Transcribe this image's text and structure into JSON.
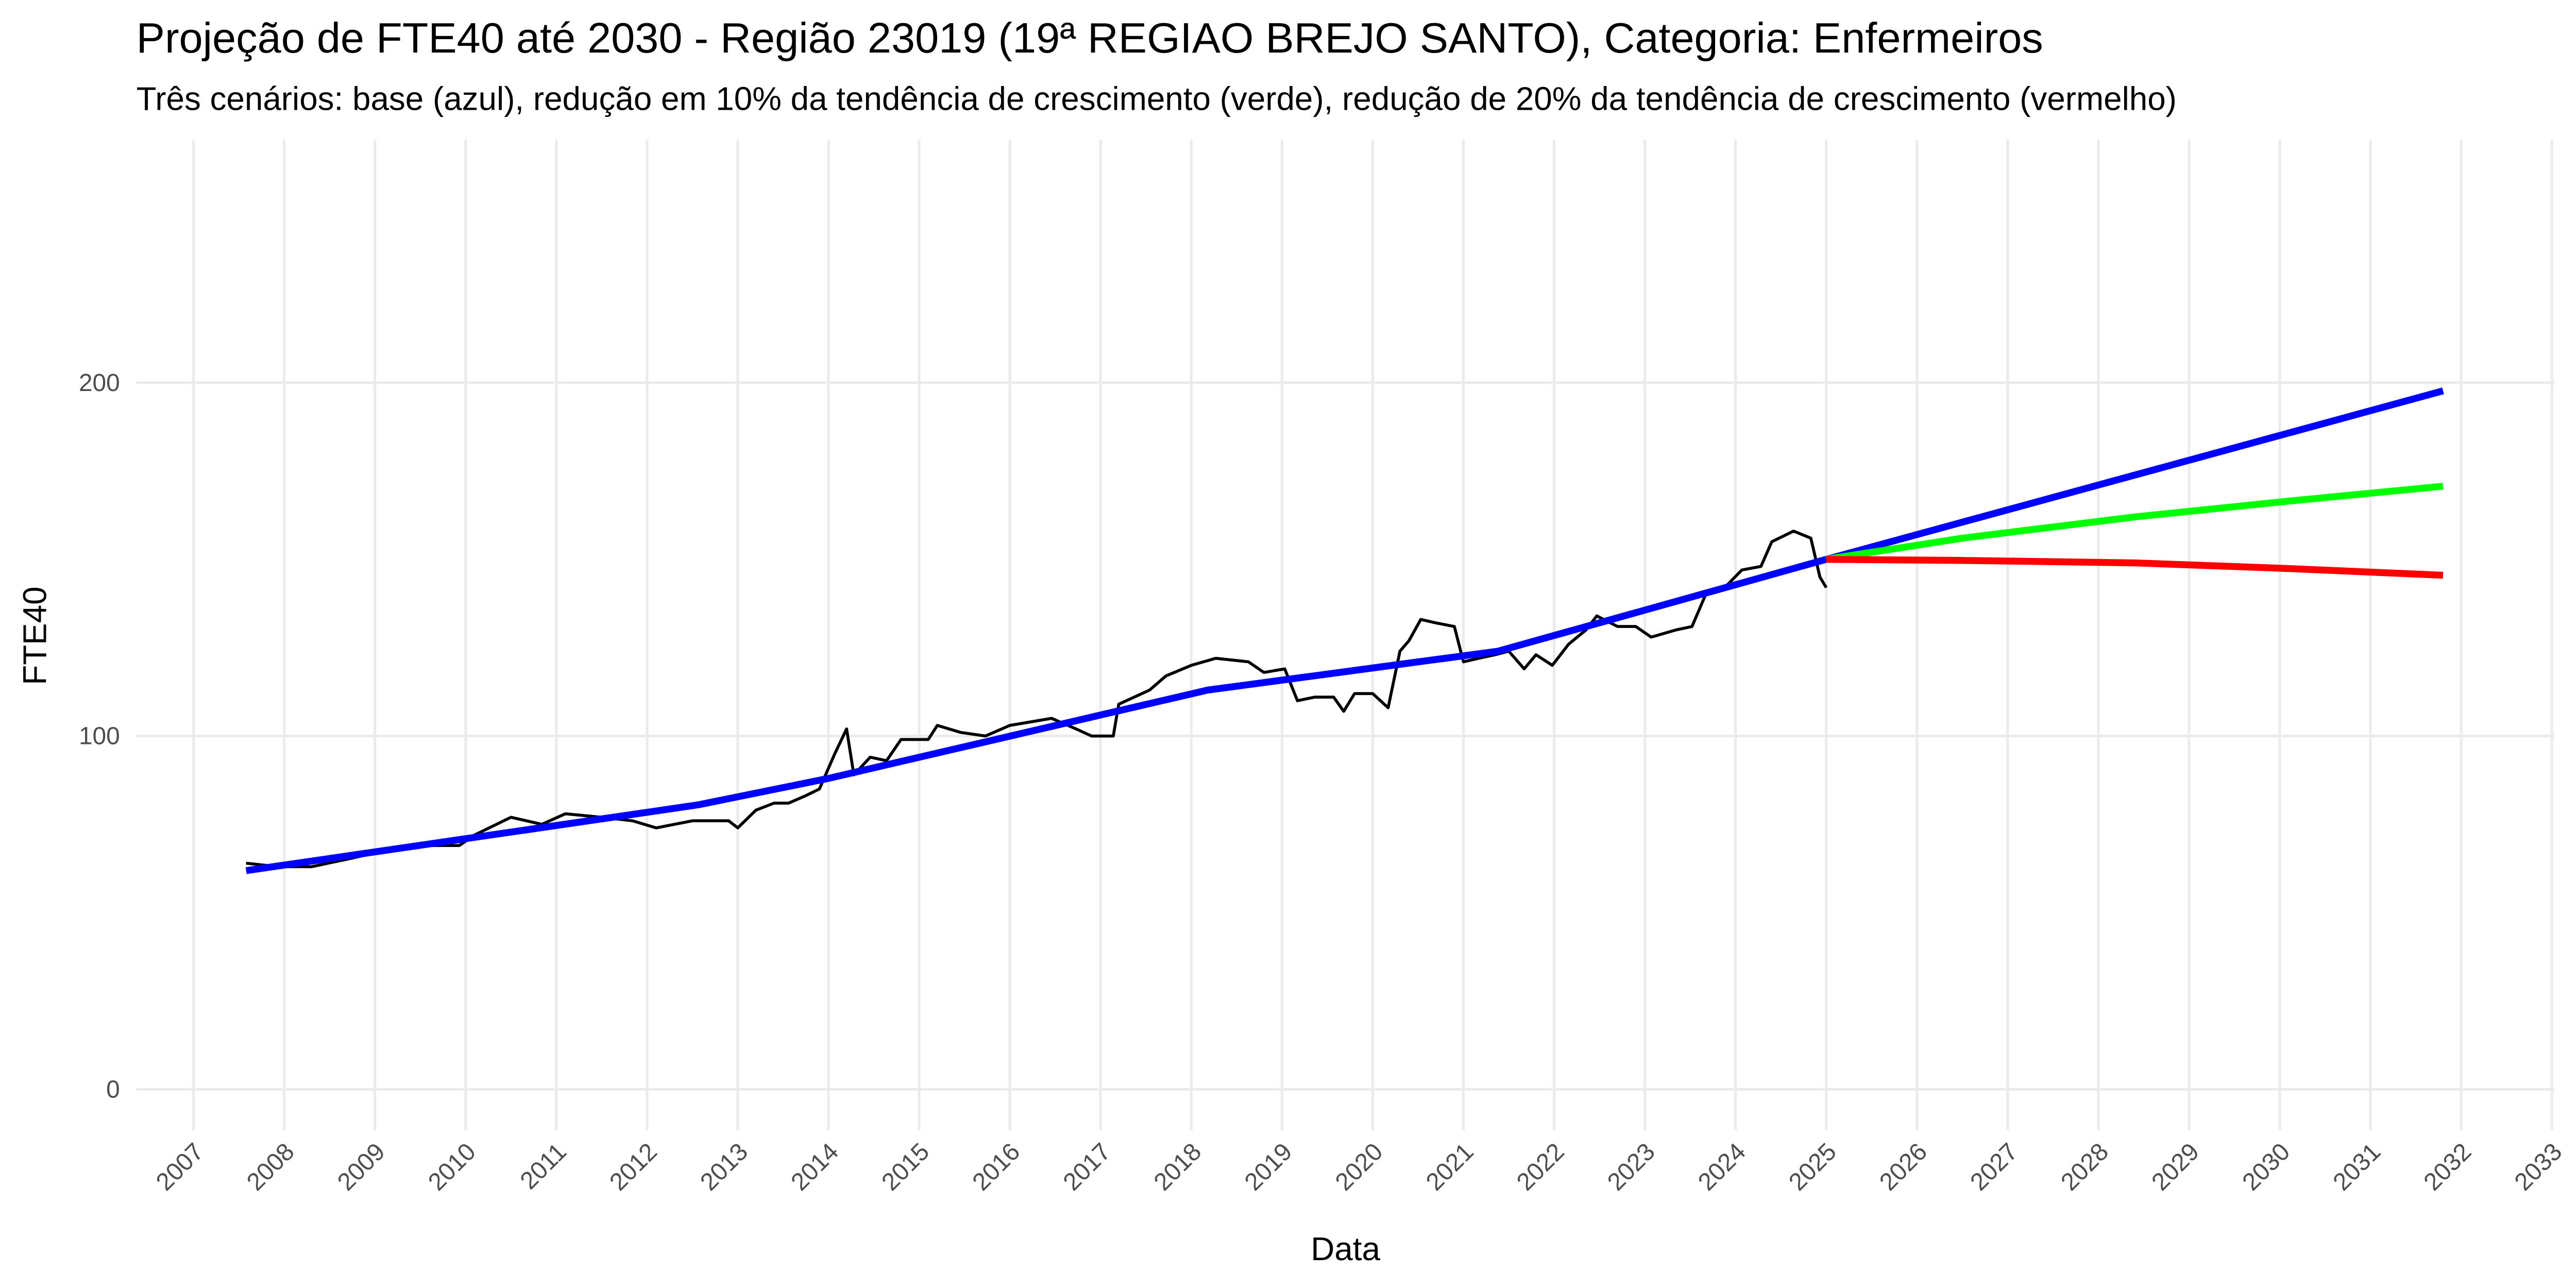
{
  "chart_data": {
    "type": "line",
    "title": "Projeção de FTE40 até 2030 - Região 23019 (19ª REGIAO BREJO SANTO), Categoria: Enfermeiros",
    "subtitle": "Três cenários: base (azul), redução em 10% da tendência de crescimento (verde), redução de 20% da tendência de crescimento (vermelho)",
    "x_label": "Data",
    "y_label": "FTE40",
    "xlim": [
      2006.37,
      2033.03
    ],
    "xticks": [
      2007,
      2008,
      2009,
      2010,
      2011,
      2012,
      2013,
      2014,
      2015,
      2016,
      2017,
      2018,
      2019,
      2020,
      2021,
      2022,
      2023,
      2024,
      2025,
      2026,
      2027,
      2028,
      2029,
      2030,
      2031,
      2032,
      2033
    ],
    "ylim": [
      -11.6,
      268.8
    ],
    "yticks": [
      0,
      100,
      200
    ],
    "grid": true,
    "series": [
      {
        "color": "#000000",
        "x": [
          2007.58,
          2007.94,
          2008.3,
          2008.67,
          2009.2,
          2009.57,
          2009.93,
          2010.1,
          2010.5,
          2010.84,
          2011.1,
          2011.5,
          2011.84,
          2012.1,
          2012.5,
          2012.9,
          2013.0,
          2013.2,
          2013.4,
          2013.56,
          2013.74,
          2013.9,
          2014.07,
          2014.2,
          2014.28,
          2014.46,
          2014.64,
          2014.8,
          2015.1,
          2015.2,
          2015.46,
          2015.73,
          2016.0,
          2016.46,
          2016.73,
          2016.9,
          2017.14,
          2017.2,
          2017.54,
          2017.72,
          2018.0,
          2018.27,
          2018.63,
          2018.8,
          2019.03,
          2019.17,
          2019.36,
          2019.57,
          2019.68,
          2019.8,
          2020.0,
          2020.17,
          2020.3,
          2020.4,
          2020.53,
          2020.7,
          2020.9,
          2021.0,
          2021.17,
          2021.35,
          2021.5,
          2021.67,
          2021.8,
          2021.98,
          2022.16,
          2022.35,
          2022.47,
          2022.7,
          2022.9,
          2023.07,
          2023.34,
          2023.52,
          2023.67,
          2023.88,
          2024.07,
          2024.28,
          2024.4,
          2024.64,
          2024.83,
          2024.93,
          2025.0
        ],
        "values": [
          64,
          63,
          63,
          65,
          68,
          69,
          69,
          72,
          77,
          75,
          78,
          77,
          76,
          74,
          76,
          76,
          74,
          79,
          81,
          81,
          83,
          85,
          95,
          102,
          89,
          94,
          93,
          99,
          99,
          103,
          101,
          100,
          103,
          105,
          102,
          100,
          100,
          109,
          113,
          117,
          120,
          122,
          121,
          118,
          119,
          110,
          111,
          111,
          107,
          112,
          112,
          108,
          124,
          127,
          133,
          132,
          131,
          121,
          122,
          123,
          124,
          119,
          123,
          120,
          126,
          130,
          134,
          131,
          131,
          128,
          130,
          131,
          140,
          142,
          147,
          148,
          155,
          158,
          156,
          145,
          142
        ]
      },
      {
        "color": "#0000ff",
        "x": [
          2007.58,
          2012.56,
          2014.0,
          2018.18,
          2021.38,
          2025.0,
          2031.8
        ],
        "values": [
          61.9,
          80.5,
          88,
          113,
          124,
          150,
          197.7
        ]
      },
      {
        "color": "#00ff00",
        "x": [
          2025.0,
          2026.5,
          2028.4,
          2030.1,
          2031.8
        ],
        "values": [
          150,
          156,
          162,
          166.5,
          170.7
        ]
      },
      {
        "color": "#ff0000",
        "x": [
          2025.0,
          2026.5,
          2028.4,
          2030.1,
          2031.8
        ],
        "values": [
          150,
          149.7,
          149,
          147.4,
          145.5
        ]
      }
    ]
  }
}
